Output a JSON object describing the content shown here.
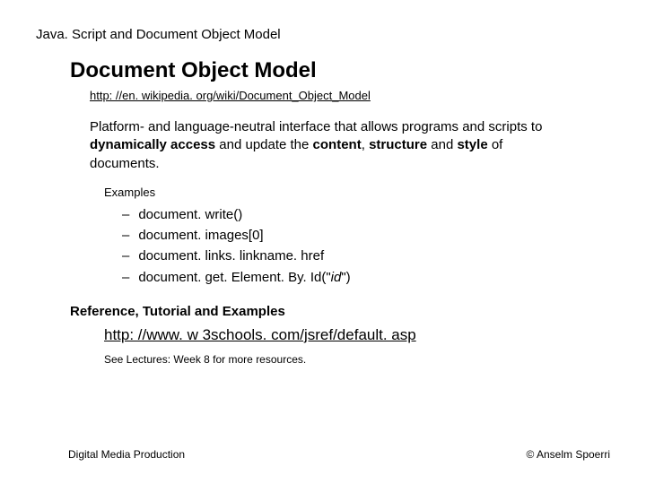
{
  "colors": {
    "background": "#ffffff",
    "text": "#000000"
  },
  "typography": {
    "body_family": "Verdana, Geneva, sans-serif",
    "topic_fontsize": 15,
    "heading_fontsize": 24,
    "wiki_link_fontsize": 13,
    "description_fontsize": 15,
    "examples_label_fontsize": 13,
    "example_item_fontsize": 15,
    "ref_heading_fontsize": 15,
    "ref_link_fontsize": 17,
    "see_lectures_fontsize": 12,
    "footer_fontsize": 12
  },
  "topic": "Java. Script and Document Object Model",
  "heading": "Document Object Model",
  "wiki_link": "http: //en. wikipedia. org/wiki/Document_Object_Model",
  "description": {
    "p1": "Platform- and language-neutral interface that allows programs and scripts to ",
    "b1": "dynamically access",
    "p2": " and update the ",
    "b2": "content",
    "p3": ", ",
    "b3": "structure",
    "p4": " and ",
    "b4": "style",
    "p5": " of documents."
  },
  "examples_label": "Examples",
  "examples": [
    {
      "text": "document. write()"
    },
    {
      "text": "document. images[0]"
    },
    {
      "text": "document. links. linkname. href"
    },
    {
      "prefix": "document. get. Element. By. Id(\"",
      "italic": "id",
      "suffix": "\")"
    }
  ],
  "ref_heading": "Reference, Tutorial and Examples",
  "ref_link": "http: //www. w 3schools. com/jsref/default. asp",
  "see_lectures": "See Lectures: Week 8 for more resources.",
  "footer": {
    "left": "Digital Media Production",
    "right": "© Anselm Spoerri"
  }
}
